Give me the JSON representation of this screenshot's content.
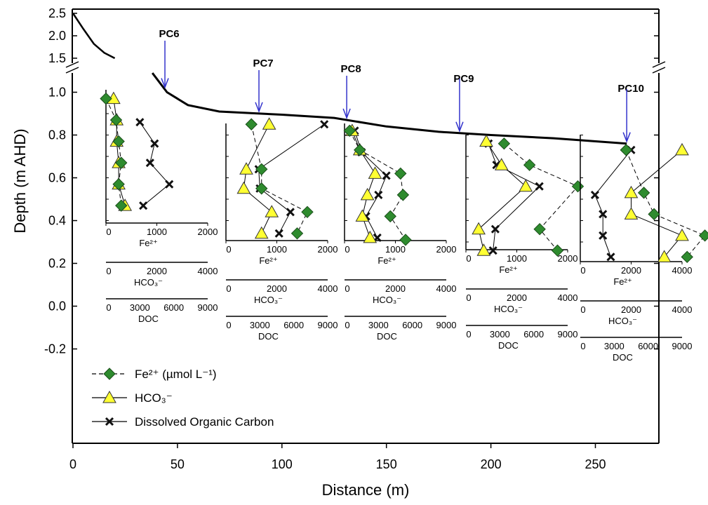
{
  "chart_data": {
    "type": "scatter",
    "xlabel": "Distance (m)",
    "ylabel": "Depth (m AHD)",
    "x_ticks": [
      "0",
      "50",
      "100",
      "150",
      "200",
      "250"
    ],
    "y_ticks_lower": [
      "-0.2",
      "0.0",
      "0.2",
      "0.4",
      "0.6",
      "0.8",
      "1.0"
    ],
    "y_ticks_upper": [
      "1.5",
      "2.0",
      "2.5"
    ],
    "ylim_lower": [
      -0.2,
      1.1
    ],
    "ylim_upper": [
      1.5,
      2.5
    ],
    "xlim": [
      0,
      280
    ],
    "ground_surface": {
      "upper_segment": [
        [
          0,
          2.5
        ],
        [
          5,
          2.15
        ],
        [
          10,
          1.82
        ],
        [
          15,
          1.62
        ],
        [
          20,
          1.5
        ]
      ],
      "lower_segment": [
        [
          38,
          1.09
        ],
        [
          45,
          1.0
        ],
        [
          55,
          0.94
        ],
        [
          70,
          0.91
        ],
        [
          100,
          0.895
        ],
        [
          125,
          0.88
        ],
        [
          150,
          0.84
        ],
        [
          175,
          0.815
        ],
        [
          200,
          0.8
        ],
        [
          230,
          0.785
        ],
        [
          265,
          0.76
        ]
      ]
    },
    "cores": [
      {
        "label": "PC6",
        "distance": 44,
        "axes": {
          "fe": [
            "0",
            "1000",
            "2000"
          ],
          "hco3": [
            "0",
            "2000",
            "4000"
          ],
          "doc": [
            "0",
            "3000",
            "6000",
            "9000"
          ]
        },
        "axis_labels": {
          "fe": "Fe²⁺",
          "hco3": "HCO₃⁻",
          "doc": "DOC"
        },
        "fe": [
          [
            0,
            0.97
          ],
          [
            200,
            0.87
          ],
          [
            250,
            0.77
          ],
          [
            300,
            0.67
          ],
          [
            250,
            0.57
          ],
          [
            300,
            0.47
          ]
        ],
        "hco3": [
          [
            300,
            0.97
          ],
          [
            420,
            0.87
          ],
          [
            420,
            0.77
          ],
          [
            500,
            0.67
          ],
          [
            500,
            0.57
          ],
          [
            750,
            0.47
          ]
        ],
        "doc": [
          [
            3000,
            0.86
          ],
          [
            4300,
            0.76
          ],
          [
            3900,
            0.67
          ],
          [
            5600,
            0.57
          ],
          [
            3300,
            0.47
          ]
        ]
      },
      {
        "label": "PC7",
        "distance": 89,
        "axes": {
          "fe": [
            "0",
            "1000",
            "2000"
          ],
          "hco3": [
            "0",
            "2000",
            "4000"
          ],
          "doc": [
            "0",
            "3000",
            "6000",
            "9000"
          ]
        },
        "axis_labels": {
          "fe": "Fe²⁺",
          "hco3": "HCO₃⁻",
          "doc": "DOC"
        },
        "fe": [
          [
            500,
            0.85
          ],
          [
            700,
            0.64
          ],
          [
            700,
            0.55
          ],
          [
            1600,
            0.44
          ],
          [
            1400,
            0.34
          ]
        ],
        "hco3": [
          [
            1700,
            0.85
          ],
          [
            800,
            0.64
          ],
          [
            700,
            0.55
          ],
          [
            1800,
            0.44
          ],
          [
            1400,
            0.34
          ]
        ],
        "doc": [
          [
            8700,
            0.85
          ],
          [
            2900,
            0.64
          ],
          [
            3000,
            0.55
          ],
          [
            5700,
            0.44
          ],
          [
            4700,
            0.34
          ]
        ]
      },
      {
        "label": "PC8",
        "distance": 131,
        "axes": {
          "fe": [
            "0",
            "1000",
            "2000"
          ],
          "hco3": [
            "0",
            "2000",
            "4000"
          ],
          "doc": [
            "0",
            "3000",
            "6000",
            "9000"
          ]
        },
        "axis_labels": {
          "fe": "Fe²⁺",
          "hco3": "HCO₃⁻",
          "doc": "DOC"
        },
        "fe": [
          [
            100,
            0.82
          ],
          [
            300,
            0.73
          ],
          [
            1100,
            0.62
          ],
          [
            1150,
            0.52
          ],
          [
            900,
            0.42
          ],
          [
            1200,
            0.31
          ]
        ],
        "hco3": [
          [
            300,
            0.82
          ],
          [
            600,
            0.73
          ],
          [
            1200,
            0.62
          ],
          [
            900,
            0.52
          ],
          [
            700,
            0.42
          ],
          [
            1000,
            0.32
          ]
        ],
        "doc": [
          [
            900,
            0.82
          ],
          [
            1500,
            0.72
          ],
          [
            3700,
            0.61
          ],
          [
            3000,
            0.52
          ],
          [
            1900,
            0.42
          ],
          [
            2900,
            0.32
          ]
        ]
      },
      {
        "label": "PC9",
        "distance": 185,
        "axes": {
          "fe": [
            "0",
            "1000",
            "2000"
          ],
          "hco3": [
            "0",
            "2000",
            "4000"
          ],
          "doc": [
            "0",
            "3000",
            "6000",
            "9000"
          ]
        },
        "axis_labels": {
          "fe": "Fe²⁺",
          "hco3": "HCO₃⁻",
          "doc": "DOC"
        },
        "fe": [
          [
            750,
            0.76
          ],
          [
            1250,
            0.66
          ],
          [
            2200,
            0.56
          ],
          [
            1450,
            0.36
          ],
          [
            1800,
            0.26
          ]
        ],
        "hco3": [
          [
            800,
            0.77
          ],
          [
            1400,
            0.66
          ],
          [
            2350,
            0.56
          ],
          [
            500,
            0.36
          ],
          [
            700,
            0.26
          ]
        ],
        "doc": [
          [
            2000,
            0.76
          ],
          [
            2700,
            0.66
          ],
          [
            6500,
            0.56
          ],
          [
            2600,
            0.36
          ],
          [
            2400,
            0.26
          ]
        ]
      },
      {
        "label": "PC10",
        "distance": 265,
        "axes": {
          "fe": [
            "0",
            "2000",
            "4000"
          ],
          "hco3": [
            "0",
            "2000",
            "4000"
          ],
          "doc": [
            "0",
            "3000",
            "6000",
            "9000"
          ]
        },
        "axis_labels": {
          "fe": "Fe²⁺",
          "hco3": "HCO₃⁻",
          "doc": "DOC"
        },
        "fe": [
          [
            1800,
            0.73
          ],
          [
            2500,
            0.53
          ],
          [
            2900,
            0.43
          ],
          [
            4900,
            0.33
          ],
          [
            4200,
            0.23
          ]
        ],
        "hco3": [
          [
            4000,
            0.73
          ],
          [
            2000,
            0.53
          ],
          [
            2000,
            0.43
          ],
          [
            4000,
            0.33
          ],
          [
            3300,
            0.23
          ]
        ],
        "doc": [
          [
            4500,
            0.73
          ],
          [
            1300,
            0.52
          ],
          [
            2000,
            0.43
          ],
          [
            2000,
            0.33
          ],
          [
            2700,
            0.23
          ]
        ]
      }
    ],
    "legend": [
      {
        "label": "Fe²⁺ (µmol L⁻¹)",
        "marker": "diamond",
        "color": "#2e8b2e",
        "line": "dashed"
      },
      {
        "label": "HCO₃⁻",
        "marker": "triangle",
        "color": "#ffff33",
        "line": "solid"
      },
      {
        "label": "Dissolved Organic Carbon",
        "marker": "cross",
        "color": "#111111",
        "line": "solid"
      }
    ],
    "legend_position": "bottom-left",
    "colors": {
      "fe": "#2e8b2e",
      "hco3": "#ffff33",
      "doc": "#111111",
      "arrow": "#3333cc"
    }
  }
}
